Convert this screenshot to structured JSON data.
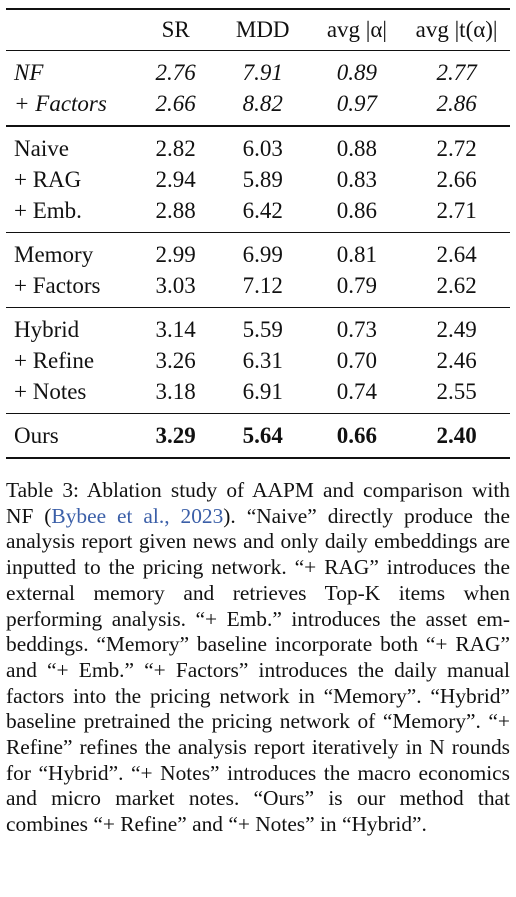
{
  "table": {
    "headers": [
      "",
      "SR",
      "MDD",
      "avg |α|",
      "avg |t(α)|"
    ],
    "groups": [
      {
        "rows": [
          {
            "label": "NF",
            "italic": true,
            "values": [
              "2.76",
              "7.91",
              "0.89",
              "2.77"
            ]
          },
          {
            "label": "+ Factors",
            "italic": true,
            "values": [
              "2.66",
              "8.82",
              "0.97",
              "2.86"
            ]
          }
        ]
      },
      {
        "rows": [
          {
            "label": "Naive",
            "values": [
              "2.82",
              "6.03",
              "0.88",
              "2.72"
            ]
          },
          {
            "label": "+ RAG",
            "values": [
              "2.94",
              "5.89",
              "0.83",
              "2.66"
            ]
          },
          {
            "label": "+ Emb.",
            "values": [
              "2.88",
              "6.42",
              "0.86",
              "2.71"
            ]
          }
        ]
      },
      {
        "rows": [
          {
            "label": "Memory",
            "values": [
              "2.99",
              "6.99",
              "0.81",
              "2.64"
            ]
          },
          {
            "label": "+ Factors",
            "values": [
              "3.03",
              "7.12",
              "0.79",
              "2.62"
            ]
          }
        ]
      },
      {
        "rows": [
          {
            "label": "Hybrid",
            "values": [
              "3.14",
              "5.59",
              "0.73",
              "2.49"
            ]
          },
          {
            "label": "+ Refine",
            "values": [
              "3.26",
              "6.31",
              "0.70",
              "2.46"
            ]
          },
          {
            "label": "+ Notes",
            "values": [
              "3.18",
              "6.91",
              "0.74",
              "2.55"
            ]
          }
        ]
      },
      {
        "rows": [
          {
            "label": "Ours",
            "bold_values": true,
            "values": [
              "3.29",
              "5.64",
              "0.66",
              "2.40"
            ]
          }
        ]
      }
    ]
  },
  "caption": {
    "prefix": "Table 3: Ablation study of AAPM and comparison with NF (",
    "citation": "Bybee et al., 2023",
    "suffix": "). “Naive” directly produce the analysis report given news and only daily embeddings are inputted to the pricing network. “+ RAG” introduces the external memory and retrieves Top-K items when performing analysis. “+ Emb.” introduces the asset em­beddings. “Memory” baseline incorporate both “+ RAG” and “+ Emb.” “+ Factors” introduces the daily manual factors into the pricing network in “Memory”. “Hy­brid” baseline pretrained the pricing network of “Mem­ory”. “+ Refine” refines the analysis report iteratively in N rounds for “Hybrid”. “+ Notes” introduces the macro economics and micro market notes. “Ours” is our method that combines “+ Refine” and “+ Notes” in “Hybrid”.",
    "link_color": "#3b5fa8"
  }
}
